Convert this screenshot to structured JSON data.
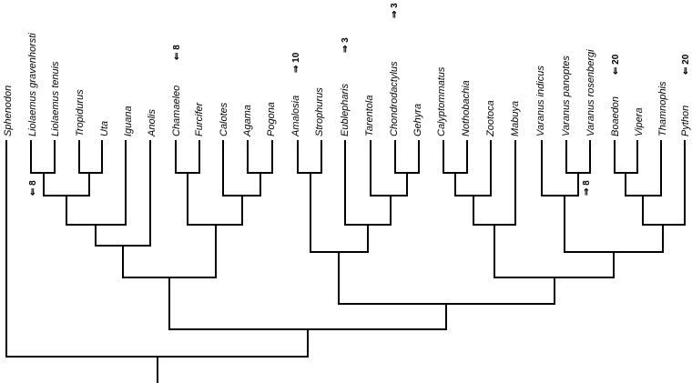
{
  "taxa": [
    "Sphenodon",
    "Liolaemus gravenhorsti",
    "Liolaemus tenuis",
    "Tropidurus",
    "Uta",
    "Iguana",
    "Anolis",
    "Chamaeleo",
    "Furcifer",
    "Calotes",
    "Agama",
    "Pogona",
    "Amalosia",
    "Strophurus",
    "Eublepharis",
    "Tarentola",
    "Chondrodactylus",
    "Gehyra",
    "Calyptommatus",
    "Nothobachia",
    "Zootoca",
    "Mabuya",
    "Varanus indicus",
    "Varanus panoptes",
    "Varanus rosenbergi",
    "Boaedon",
    "Vipera",
    "Thamnophis",
    "Python"
  ],
  "annotations": {
    "chamaeleo": "⇐ 8",
    "amalosia": "⇒ 10",
    "eublepharis": "⇒ 3",
    "chondrodactylus": "⇒ 3",
    "boaedon": "⇐ 20",
    "python": "⇐ 20",
    "liolaemus": "⇐ 8",
    "varanus": "⇒ 8"
  }
}
